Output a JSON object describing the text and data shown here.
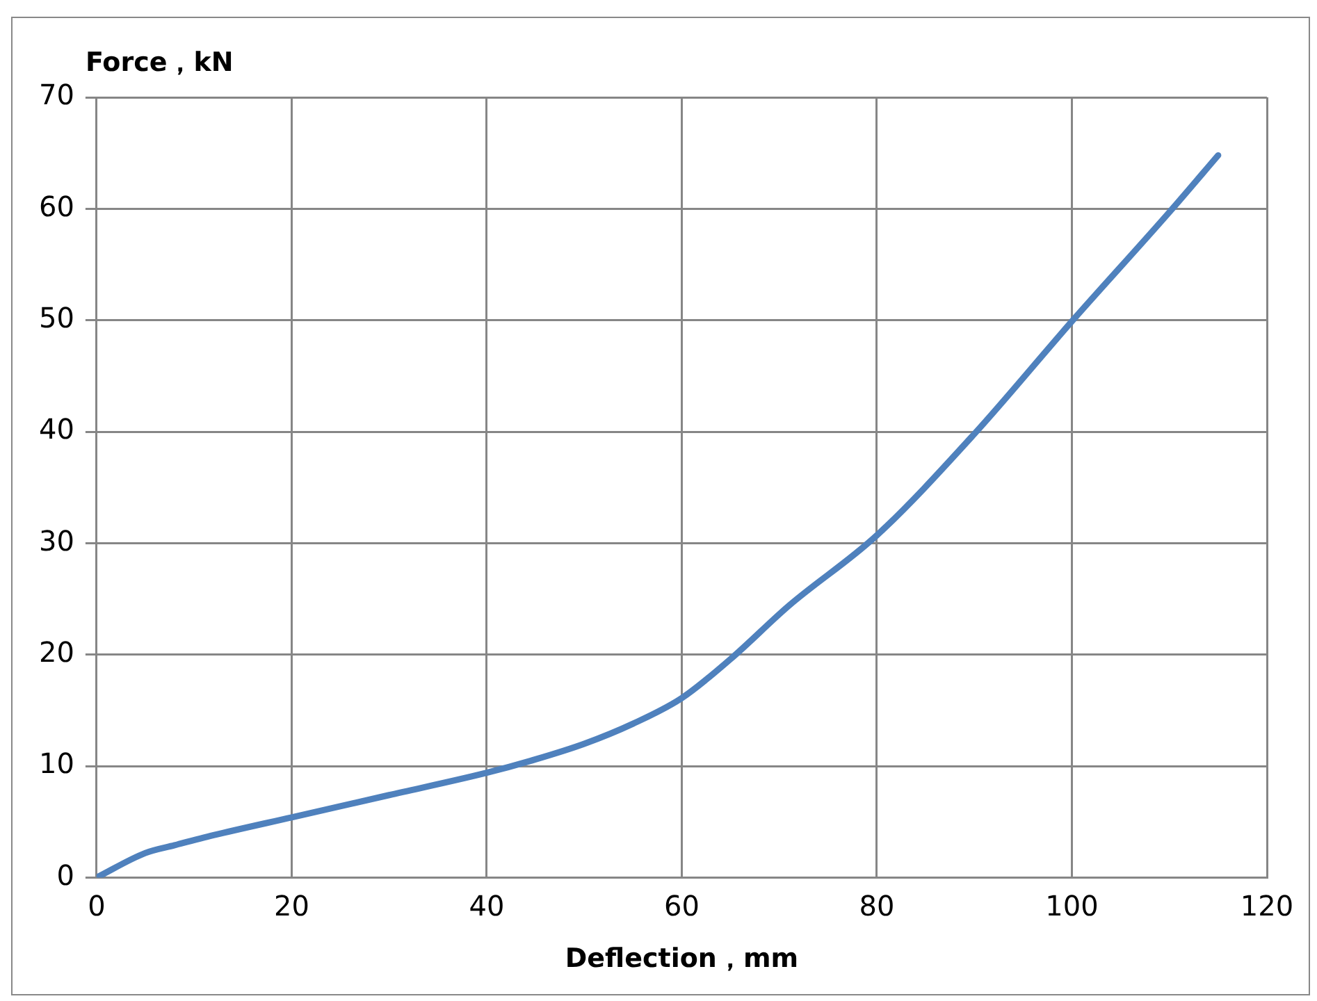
{
  "chart_data": {
    "type": "line",
    "xlabel": "Deflection，mm",
    "ylabel": "Force，kN",
    "x": [
      0,
      5,
      8,
      12,
      20,
      30,
      40,
      45,
      50,
      55,
      60,
      65,
      71,
      80,
      90,
      100,
      110,
      115
    ],
    "series": [
      {
        "color": "#4f81bd",
        "values": [
          0,
          2.2,
          2.9,
          3.8,
          5.4,
          7.4,
          9.4,
          10.6,
          12,
          13.8,
          16.1,
          19.6,
          24.4,
          30.7,
          39.8,
          49.9,
          59.7,
          64.8
        ]
      }
    ],
    "xlim": [
      0,
      120
    ],
    "xticks": [
      0,
      20,
      40,
      60,
      80,
      100,
      120
    ],
    "ylim": [
      0,
      70
    ],
    "yticks": [
      0,
      10,
      20,
      30,
      40,
      50,
      60,
      70
    ],
    "grid": true,
    "legend": false,
    "marker": "none",
    "line_style": "solid"
  }
}
